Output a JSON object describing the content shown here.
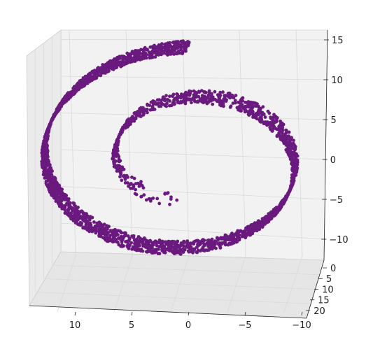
{
  "chart_data": {
    "type": "scatter",
    "title": "",
    "xlabel": "",
    "ylabel": "",
    "zlabel": "",
    "projection": "3d",
    "grid": true,
    "series": [
      {
        "color": "#6a1a7e",
        "shape": "swiss-roll",
        "t_range": [
          4.71,
          14.14
        ],
        "height_range": [
          0,
          21
        ],
        "point_count": 3000,
        "sample_points": [
          {
            "x": -0.1,
            "y": 0,
            "z": -4.7
          },
          {
            "x": -8.8,
            "y": 10,
            "z": 3.6
          },
          {
            "x": -2.5,
            "y": 5,
            "z": 10.6
          },
          {
            "x": 9.8,
            "y": 15,
            "z": 4.0
          },
          {
            "x": 8.0,
            "y": 8,
            "z": -8.6
          },
          {
            "x": -12.2,
            "y": 12,
            "z": -5.1
          },
          {
            "x": -3.2,
            "y": 20,
            "z": 14.0
          },
          {
            "x": 12.7,
            "y": 3,
            "z": -3.5
          }
        ]
      }
    ],
    "x_axis": {
      "range": [
        -11,
        14
      ],
      "ticks": [
        10,
        5,
        0,
        -5,
        -10
      ],
      "tick_labels": [
        "10",
        "5",
        "0",
        "−5",
        "−10"
      ]
    },
    "y_axis": {
      "range": [
        0,
        21
      ],
      "ticks": [
        0,
        5,
        10,
        15,
        20
      ],
      "tick_labels": [
        "0",
        "5",
        "10",
        "15",
        "20"
      ]
    },
    "z_axis": {
      "range": [
        -15,
        15
      ],
      "ticks": [
        15,
        10,
        5,
        0,
        -5,
        -10
      ],
      "tick_labels": [
        "15",
        "10",
        "5",
        "0",
        "−5",
        "−10"
      ]
    }
  }
}
